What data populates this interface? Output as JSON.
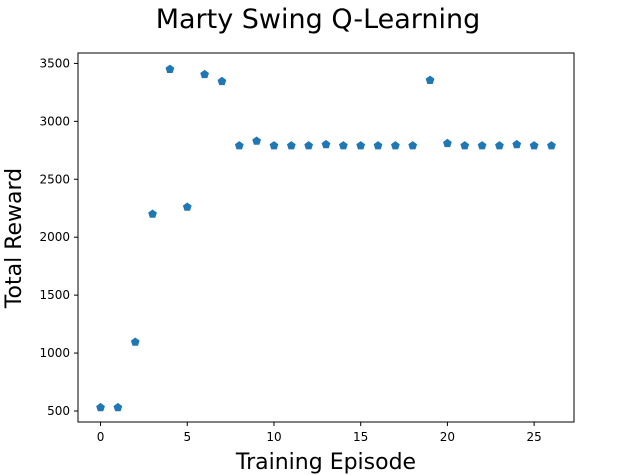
{
  "chart_data": {
    "type": "scatter",
    "title": "Marty Swing Q-Learning",
    "xlabel": "Training Episode",
    "ylabel": "Total Reward",
    "xlim": [
      -1.3,
      27.3
    ],
    "ylim": [
      405,
      3590
    ],
    "xticks": [
      0,
      5,
      10,
      15,
      20,
      25
    ],
    "yticks": [
      500,
      1000,
      1500,
      2000,
      2500,
      3000,
      3500
    ],
    "grid": false,
    "marker": "pentagon",
    "color": "#1f77b4",
    "series": [
      {
        "x": [
          0,
          1,
          2,
          3,
          4,
          5,
          6,
          7,
          8,
          9,
          10,
          11,
          12,
          13,
          14,
          15,
          16,
          17,
          18,
          19,
          20,
          21,
          22,
          23,
          24,
          25,
          26
        ],
        "y": [
          530,
          530,
          1095,
          2200,
          3450,
          2260,
          3405,
          3345,
          2790,
          2830,
          2790,
          2790,
          2790,
          2800,
          2790,
          2790,
          2790,
          2790,
          2790,
          3355,
          2810,
          2790,
          2790,
          2790,
          2800,
          2790,
          2790
        ]
      }
    ]
  }
}
